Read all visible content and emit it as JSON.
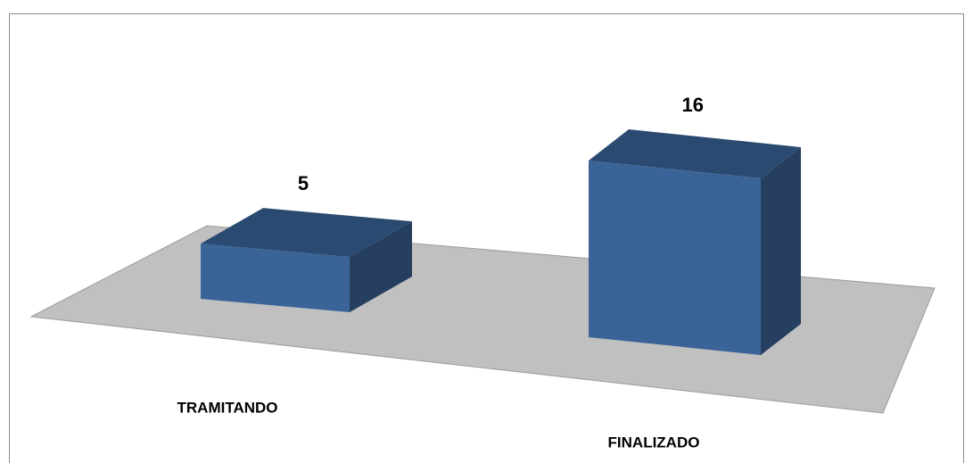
{
  "chart_data": {
    "type": "bar3d",
    "categories": [
      "TRAMITANDO",
      "FINALIZADO"
    ],
    "values": [
      5,
      16
    ],
    "color": "#3a6497"
  }
}
